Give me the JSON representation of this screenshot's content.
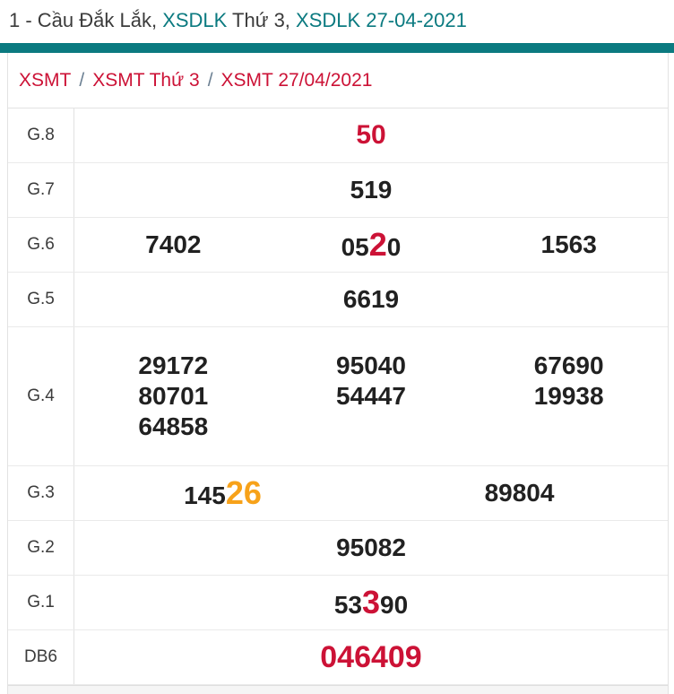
{
  "page": {
    "title_parts": [
      {
        "text": "1 - Cầu Đắk Lắk, ",
        "color": "dark"
      },
      {
        "text": "XSDLK",
        "color": "teal"
      },
      {
        "text": " Thứ 3, ",
        "color": "dark"
      },
      {
        "text": "XSDLK 27-04-2021",
        "color": "teal"
      }
    ]
  },
  "breadcrumb": {
    "separator": "/",
    "items": [
      {
        "label": "XSMT"
      },
      {
        "label": "XSMT Thứ 3"
      },
      {
        "label": "XSMT 27/04/2021"
      }
    ]
  },
  "colors": {
    "teal": "#0b7a80",
    "red": "#cc1236",
    "orange": "#f7a21a"
  },
  "results_table": {
    "rows": [
      {
        "label": "G.8",
        "columns": 1,
        "tall": false,
        "values": [
          {
            "segments": [
              {
                "text": "50",
                "style": "accent-red"
              }
            ]
          }
        ]
      },
      {
        "label": "G.7",
        "columns": 1,
        "tall": false,
        "values": [
          {
            "segments": [
              {
                "text": "519",
                "style": "normal"
              }
            ]
          }
        ]
      },
      {
        "label": "G.6",
        "columns": 3,
        "tall": false,
        "values": [
          {
            "segments": [
              {
                "text": "7402",
                "style": "normal"
              }
            ]
          },
          {
            "segments": [
              {
                "text": "05",
                "style": "normal"
              },
              {
                "text": "2",
                "style": "highlight-red"
              },
              {
                "text": "0",
                "style": "normal"
              }
            ]
          },
          {
            "segments": [
              {
                "text": "1563",
                "style": "normal"
              }
            ]
          }
        ]
      },
      {
        "label": "G.5",
        "columns": 1,
        "tall": false,
        "values": [
          {
            "segments": [
              {
                "text": "6619",
                "style": "normal"
              }
            ]
          }
        ]
      },
      {
        "label": "G.4",
        "columns": 3,
        "tall": true,
        "values": [
          {
            "segments": [
              {
                "text": "29172",
                "style": "normal"
              }
            ]
          },
          {
            "segments": [
              {
                "text": "95040",
                "style": "normal"
              }
            ]
          },
          {
            "segments": [
              {
                "text": "67690",
                "style": "normal"
              }
            ]
          },
          {
            "segments": [
              {
                "text": "80701",
                "style": "normal"
              }
            ]
          },
          {
            "segments": [
              {
                "text": "54447",
                "style": "normal"
              }
            ]
          },
          {
            "segments": [
              {
                "text": "19938",
                "style": "normal"
              }
            ]
          },
          {
            "segments": [
              {
                "text": "64858",
                "style": "normal"
              }
            ]
          }
        ]
      },
      {
        "label": "G.3",
        "columns": 2,
        "tall": false,
        "values": [
          {
            "segments": [
              {
                "text": "145",
                "style": "normal"
              },
              {
                "text": "26",
                "style": "highlight-orange"
              }
            ]
          },
          {
            "segments": [
              {
                "text": "89804",
                "style": "normal"
              }
            ]
          }
        ]
      },
      {
        "label": "G.2",
        "columns": 1,
        "tall": false,
        "values": [
          {
            "segments": [
              {
                "text": "95082",
                "style": "normal"
              }
            ]
          }
        ]
      },
      {
        "label": "G.1",
        "columns": 1,
        "tall": false,
        "values": [
          {
            "segments": [
              {
                "text": "53",
                "style": "normal"
              },
              {
                "text": "3",
                "style": "highlight-red"
              },
              {
                "text": "90",
                "style": "normal"
              }
            ]
          }
        ]
      },
      {
        "label": "DB6",
        "columns": 1,
        "tall": false,
        "values": [
          {
            "segments": [
              {
                "text": "046409",
                "style": "jackpot-red"
              }
            ]
          }
        ]
      }
    ]
  }
}
